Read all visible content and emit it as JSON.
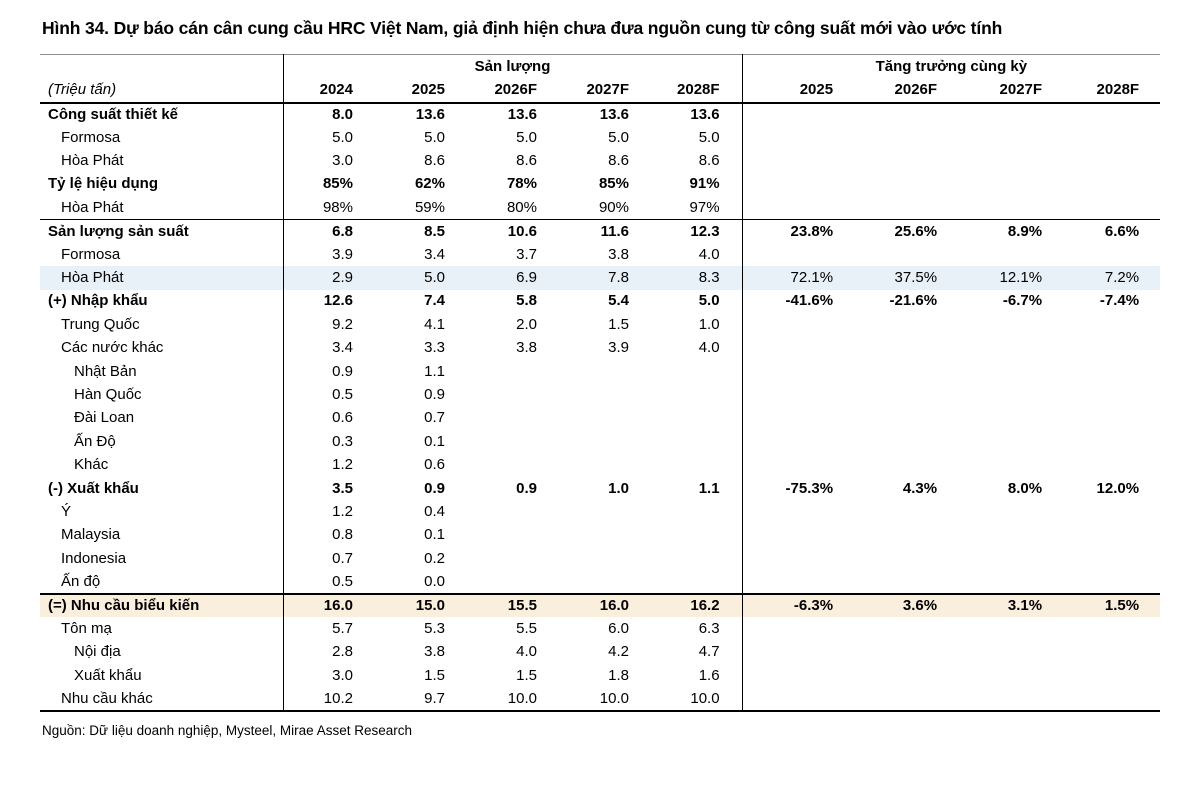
{
  "page": {
    "title": "Hình 34. Dự báo cán cân cung cầu HRC Việt Nam, giả định hiện chưa đưa nguồn cung từ công suất mới vào ước tính",
    "source": "Nguồn: Dữ liệu doanh nghiệp, Mysteel, Mirae Asset Research"
  },
  "colors": {
    "highlight_blue": "#e8f1f8",
    "highlight_beige": "#faeedd",
    "rule_black": "#000000",
    "rule_gray": "#8f8f8f"
  },
  "table": {
    "unit_label": "(Triệu tấn)",
    "group_headers": {
      "production": "Sản lượng",
      "growth": "Tăng trưởng cùng kỳ"
    },
    "production_years": [
      "2024",
      "2025",
      "2026F",
      "2027F",
      "2028F"
    ],
    "growth_years": [
      "2025",
      "2026F",
      "2027F",
      "2028F"
    ],
    "rows": [
      {
        "label": "Công suất thiết kế",
        "indent": 0,
        "bold": true,
        "highlight": "",
        "rule_below": false,
        "rule_above": false,
        "values": [
          "8.0",
          "13.6",
          "13.6",
          "13.6",
          "13.6"
        ],
        "growth": [
          "",
          "",
          "",
          ""
        ]
      },
      {
        "label": "Formosa",
        "indent": 1,
        "bold": false,
        "highlight": "",
        "rule_below": false,
        "rule_above": false,
        "values": [
          "5.0",
          "5.0",
          "5.0",
          "5.0",
          "5.0"
        ],
        "growth": [
          "",
          "",
          "",
          ""
        ]
      },
      {
        "label": "Hòa Phát",
        "indent": 1,
        "bold": false,
        "highlight": "",
        "rule_below": false,
        "rule_above": false,
        "values": [
          "3.0",
          "8.6",
          "8.6",
          "8.6",
          "8.6"
        ],
        "growth": [
          "",
          "",
          "",
          ""
        ]
      },
      {
        "label": "Tỷ lệ hiệu dụng",
        "indent": 0,
        "bold": true,
        "highlight": "",
        "rule_below": false,
        "rule_above": false,
        "values": [
          "85%",
          "62%",
          "78%",
          "85%",
          "91%"
        ],
        "growth": [
          "",
          "",
          "",
          ""
        ]
      },
      {
        "label": "Hòa Phát",
        "indent": 1,
        "bold": false,
        "highlight": "",
        "rule_below": true,
        "rule_above": false,
        "values": [
          "98%",
          "59%",
          "80%",
          "90%",
          "97%"
        ],
        "growth": [
          "",
          "",
          "",
          ""
        ]
      },
      {
        "label": "Sản lượng sản suất",
        "indent": 0,
        "bold": true,
        "highlight": "",
        "rule_below": false,
        "rule_above": false,
        "values": [
          "6.8",
          "8.5",
          "10.6",
          "11.6",
          "12.3"
        ],
        "growth": [
          "23.8%",
          "25.6%",
          "8.9%",
          "6.6%"
        ]
      },
      {
        "label": "Formosa",
        "indent": 1,
        "bold": false,
        "highlight": "",
        "rule_below": false,
        "rule_above": false,
        "values": [
          "3.9",
          "3.4",
          "3.7",
          "3.8",
          "4.0"
        ],
        "growth": [
          "",
          "",
          "",
          ""
        ]
      },
      {
        "label": "Hòa Phát",
        "indent": 1,
        "bold": false,
        "highlight": "blue",
        "rule_below": false,
        "rule_above": false,
        "values": [
          "2.9",
          "5.0",
          "6.9",
          "7.8",
          "8.3"
        ],
        "growth": [
          "72.1%",
          "37.5%",
          "12.1%",
          "7.2%"
        ]
      },
      {
        "label": "(+) Nhập khẩu",
        "indent": 0,
        "bold": true,
        "highlight": "",
        "rule_below": false,
        "rule_above": false,
        "values": [
          "12.6",
          "7.4",
          "5.8",
          "5.4",
          "5.0"
        ],
        "growth": [
          "-41.6%",
          "-21.6%",
          "-6.7%",
          "-7.4%"
        ]
      },
      {
        "label": "Trung Quốc",
        "indent": 1,
        "bold": false,
        "highlight": "",
        "rule_below": false,
        "rule_above": false,
        "values": [
          "9.2",
          "4.1",
          "2.0",
          "1.5",
          "1.0"
        ],
        "growth": [
          "",
          "",
          "",
          ""
        ]
      },
      {
        "label": "Các nước khác",
        "indent": 1,
        "bold": false,
        "highlight": "",
        "rule_below": false,
        "rule_above": false,
        "values": [
          "3.4",
          "3.3",
          "3.8",
          "3.9",
          "4.0"
        ],
        "growth": [
          "",
          "",
          "",
          ""
        ]
      },
      {
        "label": "Nhật Bản",
        "indent": 2,
        "bold": false,
        "highlight": "",
        "rule_below": false,
        "rule_above": false,
        "values": [
          "0.9",
          "1.1",
          "",
          "",
          ""
        ],
        "growth": [
          "",
          "",
          "",
          ""
        ]
      },
      {
        "label": "Hàn Quốc",
        "indent": 2,
        "bold": false,
        "highlight": "",
        "rule_below": false,
        "rule_above": false,
        "values": [
          "0.5",
          "0.9",
          "",
          "",
          ""
        ],
        "growth": [
          "",
          "",
          "",
          ""
        ]
      },
      {
        "label": "Đài Loan",
        "indent": 2,
        "bold": false,
        "highlight": "",
        "rule_below": false,
        "rule_above": false,
        "values": [
          "0.6",
          "0.7",
          "",
          "",
          ""
        ],
        "growth": [
          "",
          "",
          "",
          ""
        ]
      },
      {
        "label": "Ấn Độ",
        "indent": 2,
        "bold": false,
        "highlight": "",
        "rule_below": false,
        "rule_above": false,
        "values": [
          "0.3",
          "0.1",
          "",
          "",
          ""
        ],
        "growth": [
          "",
          "",
          "",
          ""
        ]
      },
      {
        "label": "Khác",
        "indent": 2,
        "bold": false,
        "highlight": "",
        "rule_below": false,
        "rule_above": false,
        "values": [
          "1.2",
          "0.6",
          "",
          "",
          ""
        ],
        "growth": [
          "",
          "",
          "",
          ""
        ]
      },
      {
        "label": "(-) Xuất khẩu",
        "indent": 0,
        "bold": true,
        "highlight": "",
        "rule_below": false,
        "rule_above": false,
        "values": [
          "3.5",
          "0.9",
          "0.9",
          "1.0",
          "1.1"
        ],
        "growth": [
          "-75.3%",
          "4.3%",
          "8.0%",
          "12.0%"
        ]
      },
      {
        "label": "Ý",
        "indent": 1,
        "bold": false,
        "highlight": "",
        "rule_below": false,
        "rule_above": false,
        "values": [
          "1.2",
          "0.4",
          "",
          "",
          ""
        ],
        "growth": [
          "",
          "",
          "",
          ""
        ]
      },
      {
        "label": "Malaysia",
        "indent": 1,
        "bold": false,
        "highlight": "",
        "rule_below": false,
        "rule_above": false,
        "values": [
          "0.8",
          "0.1",
          "",
          "",
          ""
        ],
        "growth": [
          "",
          "",
          "",
          ""
        ]
      },
      {
        "label": "Indonesia",
        "indent": 1,
        "bold": false,
        "highlight": "",
        "rule_below": false,
        "rule_above": false,
        "values": [
          "0.7",
          "0.2",
          "",
          "",
          ""
        ],
        "growth": [
          "",
          "",
          "",
          ""
        ]
      },
      {
        "label": "Ấn độ",
        "indent": 1,
        "bold": false,
        "highlight": "",
        "rule_below": false,
        "rule_above": false,
        "values": [
          "0.5",
          "0.0",
          "",
          "",
          ""
        ],
        "growth": [
          "",
          "",
          "",
          ""
        ]
      },
      {
        "label": "(=) Nhu cầu biểu kiến",
        "indent": 0,
        "bold": true,
        "highlight": "beige",
        "rule_below": false,
        "rule_above": true,
        "values": [
          "16.0",
          "15.0",
          "15.5",
          "16.0",
          "16.2"
        ],
        "growth": [
          "-6.3%",
          "3.6%",
          "3.1%",
          "1.5%"
        ]
      },
      {
        "label": "Tôn mạ",
        "indent": 1,
        "bold": false,
        "highlight": "",
        "rule_below": false,
        "rule_above": false,
        "values": [
          "5.7",
          "5.3",
          "5.5",
          "6.0",
          "6.3"
        ],
        "growth": [
          "",
          "",
          "",
          ""
        ]
      },
      {
        "label": "Nội địa",
        "indent": 2,
        "bold": false,
        "highlight": "",
        "rule_below": false,
        "rule_above": false,
        "values": [
          "2.8",
          "3.8",
          "4.0",
          "4.2",
          "4.7"
        ],
        "growth": [
          "",
          "",
          "",
          ""
        ]
      },
      {
        "label": "Xuất khẩu",
        "indent": 2,
        "bold": false,
        "highlight": "",
        "rule_below": false,
        "rule_above": false,
        "values": [
          "3.0",
          "1.5",
          "1.5",
          "1.8",
          "1.6"
        ],
        "growth": [
          "",
          "",
          "",
          ""
        ]
      },
      {
        "label": "Nhu cầu khác",
        "indent": 1,
        "bold": false,
        "highlight": "",
        "rule_below": false,
        "rule_above": false,
        "values": [
          "10.2",
          "9.7",
          "10.0",
          "10.0",
          "10.0"
        ],
        "growth": [
          "",
          "",
          "",
          ""
        ]
      }
    ]
  }
}
